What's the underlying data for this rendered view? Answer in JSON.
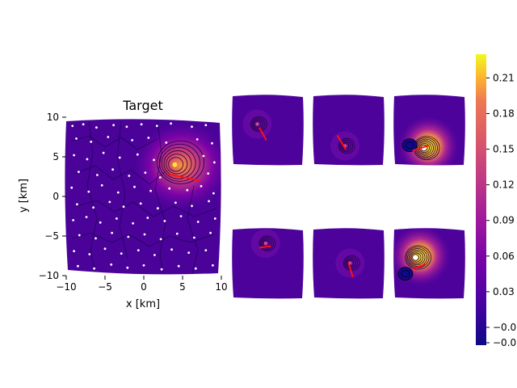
{
  "chart_data": {
    "type": "heatmap",
    "main_panel": {
      "title": "Target",
      "xlabel": "x [km]",
      "ylabel": "y [km]",
      "xlim": [
        -10,
        10
      ],
      "ylim": [
        -10,
        10
      ],
      "xticks": [
        "−10",
        "−5",
        "0",
        "5",
        "10"
      ],
      "yticks": [
        "10",
        "5",
        "0",
        "−5",
        "−10"
      ],
      "source": {
        "x": 4,
        "y": 4
      },
      "arrow": {
        "x0": 3.2,
        "y0": 2.8,
        "x1": 7.2,
        "y1": 2.0
      },
      "stations": [
        [
          -9.2,
          8.9
        ],
        [
          -7.8,
          9.1
        ],
        [
          -6.1,
          8.7
        ],
        [
          -3.9,
          9.0
        ],
        [
          -2.2,
          8.8
        ],
        [
          -0.3,
          9.1
        ],
        [
          1.7,
          8.9
        ],
        [
          3.5,
          9.2
        ],
        [
          6.2,
          8.8
        ],
        [
          8.0,
          9.0
        ],
        [
          -8.7,
          7.3
        ],
        [
          -6.8,
          6.9
        ],
        [
          -4.6,
          7.5
        ],
        [
          -1.5,
          7.1
        ],
        [
          0.6,
          7.4
        ],
        [
          2.9,
          6.8
        ],
        [
          6.9,
          7.2
        ],
        [
          8.8,
          6.7
        ],
        [
          -9.0,
          5.2
        ],
        [
          -7.3,
          4.7
        ],
        [
          -5.2,
          5.5
        ],
        [
          -3.1,
          4.9
        ],
        [
          -0.8,
          5.3
        ],
        [
          1.3,
          4.6
        ],
        [
          7.7,
          5.1
        ],
        [
          9.1,
          4.3
        ],
        [
          -8.4,
          3.1
        ],
        [
          -6.0,
          2.7
        ],
        [
          -4.0,
          3.4
        ],
        [
          -1.9,
          2.6
        ],
        [
          0.2,
          3.0
        ],
        [
          2.1,
          2.4
        ],
        [
          8.3,
          2.9
        ],
        [
          -9.3,
          1.1
        ],
        [
          -7.1,
          0.6
        ],
        [
          -5.4,
          1.4
        ],
        [
          -3.3,
          0.5
        ],
        [
          -1.2,
          1.2
        ],
        [
          0.9,
          0.7
        ],
        [
          3.3,
          1.0
        ],
        [
          5.6,
          0.8
        ],
        [
          7.4,
          1.3
        ],
        [
          9.0,
          0.4
        ],
        [
          -8.6,
          -1.0
        ],
        [
          -6.5,
          -1.4
        ],
        [
          -4.4,
          -0.7
        ],
        [
          -2.6,
          -1.3
        ],
        [
          -0.4,
          -0.9
        ],
        [
          1.8,
          -1.5
        ],
        [
          4.1,
          -0.8
        ],
        [
          6.2,
          -1.2
        ],
        [
          8.4,
          -0.6
        ],
        [
          -9.1,
          -3.0
        ],
        [
          -7.4,
          -2.6
        ],
        [
          -5.6,
          -3.3
        ],
        [
          -3.5,
          -2.8
        ],
        [
          -1.4,
          -3.4
        ],
        [
          0.5,
          -2.7
        ],
        [
          2.7,
          -3.1
        ],
        [
          4.8,
          -2.5
        ],
        [
          7.0,
          -3.2
        ],
        [
          9.2,
          -2.8
        ],
        [
          -8.3,
          -4.9
        ],
        [
          -6.2,
          -5.3
        ],
        [
          -4.1,
          -4.6
        ],
        [
          -2.0,
          -5.1
        ],
        [
          0.1,
          -4.8
        ],
        [
          2.2,
          -5.4
        ],
        [
          4.3,
          -4.7
        ],
        [
          6.5,
          -5.2
        ],
        [
          8.6,
          -4.6
        ],
        [
          -9.0,
          -6.9
        ],
        [
          -7.0,
          -7.3
        ],
        [
          -5.0,
          -6.6
        ],
        [
          -2.9,
          -7.2
        ],
        [
          -0.7,
          -6.8
        ],
        [
          1.4,
          -7.4
        ],
        [
          3.6,
          -6.7
        ],
        [
          5.8,
          -7.1
        ],
        [
          8.0,
          -6.8
        ],
        [
          -8.5,
          -8.8
        ],
        [
          -6.4,
          -9.1
        ],
        [
          -4.2,
          -8.6
        ],
        [
          -2.1,
          -9.0
        ],
        [
          0.0,
          -8.7
        ],
        [
          2.3,
          -9.2
        ],
        [
          4.5,
          -8.8
        ],
        [
          6.7,
          -9.1
        ],
        [
          8.9,
          -8.7
        ]
      ]
    },
    "small_panels": [
      {
        "row": 0,
        "col": 0,
        "source": [
          0.35,
          0.42
        ],
        "intensity": 0.45,
        "arrow": [
          [
            0.38,
            0.47
          ],
          [
            0.48,
            0.65
          ]
        ],
        "secondary": null
      },
      {
        "row": 0,
        "col": 1,
        "source": [
          0.45,
          0.73
        ],
        "intensity": 0.4,
        "arrow": [
          [
            0.34,
            0.58
          ],
          [
            0.46,
            0.78
          ]
        ],
        "secondary": null
      },
      {
        "row": 0,
        "col": 2,
        "source": [
          0.42,
          0.76
        ],
        "intensity": 1.0,
        "arrow": [
          [
            0.5,
            0.72
          ],
          [
            0.26,
            0.8
          ]
        ],
        "secondary": [
          0.22,
          0.72
        ]
      },
      {
        "row": 1,
        "col": 0,
        "source": [
          0.47,
          0.22
        ],
        "intensity": 0.45,
        "arrow": [
          [
            0.54,
            0.26
          ],
          [
            0.38,
            0.28
          ]
        ],
        "secondary": null
      },
      {
        "row": 1,
        "col": 1,
        "source": [
          0.52,
          0.5
        ],
        "intensity": 0.4,
        "arrow": [
          [
            0.5,
            0.5
          ],
          [
            0.56,
            0.7
          ]
        ],
        "secondary": null
      },
      {
        "row": 1,
        "col": 2,
        "source": [
          0.3,
          0.42
        ],
        "intensity": 1.0,
        "arrow": [
          [
            0.26,
            0.58
          ],
          [
            0.44,
            0.52
          ]
        ],
        "secondary": [
          0.16,
          0.65
        ]
      }
    ],
    "colorbar": {
      "colormap": "plasma",
      "min": -0.015,
      "max": 0.23,
      "ticks": [
        0.0,
        0.03,
        0.06,
        0.09,
        0.12,
        0.15,
        0.18,
        0.21
      ],
      "tick_labels": [
        "−0.00",
        "0.03",
        "0.06",
        "0.09",
        "0.12",
        "0.15",
        "0.18",
        "0.21"
      ],
      "bottom_label": "−0.0"
    }
  }
}
